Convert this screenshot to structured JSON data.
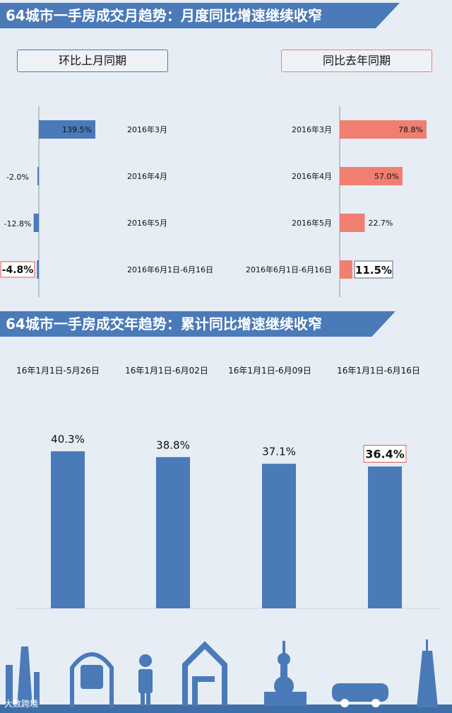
{
  "header1": {
    "title": "64城市一手房成交月趋势：月度同比增速继续收窄"
  },
  "legend": {
    "left": "环比上月同期",
    "right": "同比去年同期"
  },
  "header2": {
    "title": "64城市一手房成交年趋势：累计同比增速继续收窄"
  },
  "watermark": "大数跨境",
  "colors": {
    "blue": "#4a7ab8",
    "salmon": "#f07f72",
    "highlight_border": "#e55a4e"
  },
  "chart_data": [
    {
      "type": "bar",
      "orientation": "horizontal",
      "categories": [
        "2016年3月",
        "2016年4月",
        "2016年5月",
        "2016年6月1日-6月16日"
      ],
      "series": [
        {
          "name": "环比上月同期",
          "values": [
            139.5,
            -2.0,
            -12.8,
            -4.8
          ]
        }
      ],
      "value_labels": [
        "139.5%",
        "-2.0%",
        "-12.8%",
        "-4.8%"
      ],
      "highlight_index": 3
    },
    {
      "type": "bar",
      "orientation": "horizontal",
      "categories": [
        "2016年3月",
        "2016年4月",
        "2016年5月",
        "2016年6月1日-6月16日"
      ],
      "series": [
        {
          "name": "同比去年同期",
          "values": [
            78.8,
            57.0,
            22.7,
            11.5
          ]
        }
      ],
      "value_labels": [
        "78.8%",
        "57.0%",
        "22.7%",
        "11.5%"
      ],
      "highlight_index": 3
    },
    {
      "type": "bar",
      "categories": [
        "16年1月1日-5月26日",
        "16年1月1日-6月02日",
        "16年1月1日-6月09日",
        "16年1月1日-6月16日"
      ],
      "values": [
        40.3,
        38.8,
        37.1,
        36.4
      ],
      "value_labels": [
        "40.3%",
        "38.8%",
        "37.1%",
        "36.4%"
      ],
      "highlight_index": 3
    }
  ]
}
